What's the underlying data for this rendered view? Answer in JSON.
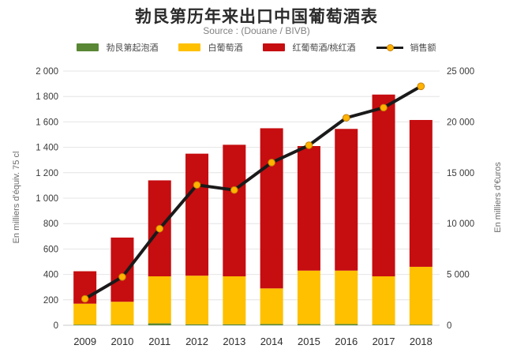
{
  "chart_data": {
    "type": "bar",
    "stacked": true,
    "title": "勃艮第历年来出口中国葡萄酒表",
    "subtitle": "Source : (Douane / BIVB)",
    "categories": [
      "2009",
      "2010",
      "2011",
      "2012",
      "2013",
      "2014",
      "2015",
      "2016",
      "2017",
      "2018"
    ],
    "series": [
      {
        "name": "勃艮第起泡酒",
        "color": "#598734",
        "axis": "left",
        "values": [
          5,
          5,
          15,
          8,
          8,
          10,
          10,
          10,
          5,
          5
        ]
      },
      {
        "name": "白葡萄酒",
        "color": "#FFC000",
        "axis": "left",
        "values": [
          165,
          180,
          370,
          382,
          377,
          280,
          420,
          420,
          380,
          455
        ]
      },
      {
        "name": "红葡萄酒/桃红酒",
        "color": "#C60D10",
        "axis": "left",
        "values": [
          255,
          505,
          755,
          960,
          1035,
          1260,
          980,
          1115,
          1430,
          1155
        ]
      }
    ],
    "bar_totals": [
      425,
      690,
      1140,
      1350,
      1420,
      1550,
      1410,
      1545,
      1815,
      1615
    ],
    "line_series": {
      "name": "销售额",
      "color": "#1a1a1a",
      "marker_color": "#ffb300",
      "axis": "right",
      "values": [
        2600,
        4750,
        9500,
        13800,
        13300,
        16000,
        17700,
        20400,
        21400,
        23500
      ]
    },
    "left_axis": {
      "label": "En milliers d'équiv. 75 cl",
      "min": 0,
      "max": 2000,
      "step": 200,
      "tick_labels": [
        "0",
        "200",
        "400",
        "600",
        "800",
        "1 000",
        "1 200",
        "1 400",
        "1 600",
        "1 800",
        "2 000"
      ]
    },
    "right_axis": {
      "label": "En milliers d'€uros",
      "min": 0,
      "max": 25000,
      "step": 5000,
      "tick_labels": [
        "0",
        "5 000",
        "10 000",
        "15 000",
        "20 000",
        "25 000"
      ]
    },
    "grid": true,
    "legend_position": "top",
    "colors": {
      "grid": "#e4e4e4",
      "baseline": "#c8c8c8",
      "background": "#ffffff"
    }
  }
}
